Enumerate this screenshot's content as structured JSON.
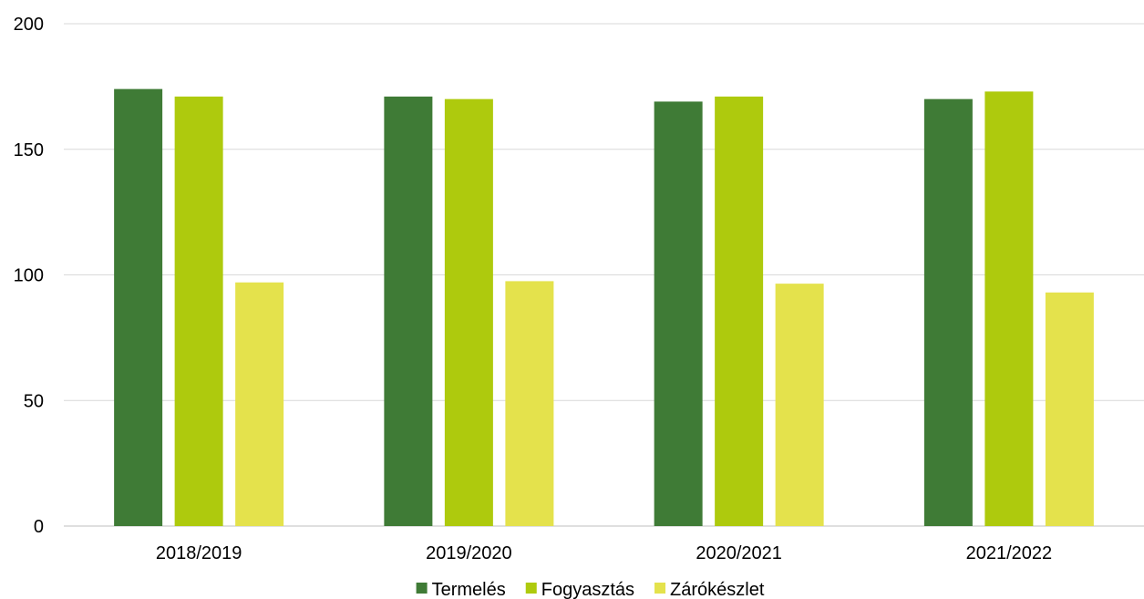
{
  "chart_data": {
    "type": "bar",
    "title": "",
    "xlabel": "",
    "ylabel": "",
    "ylim": [
      0,
      200
    ],
    "yticks": [
      0,
      50,
      100,
      150,
      200
    ],
    "grid": true,
    "legend_position": "bottom",
    "categories": [
      "2018/2019",
      "2019/2020",
      "2020/2021",
      "2021/2022"
    ],
    "series": [
      {
        "name": "Termelés",
        "color": "#3f7b36",
        "values": [
          174,
          171,
          169,
          170
        ]
      },
      {
        "name": "Fogyasztás",
        "color": "#aeca0d",
        "values": [
          171,
          170,
          171,
          173
        ]
      },
      {
        "name": "Zárókészlet",
        "color": "#e4e24c",
        "values": [
          97,
          97.5,
          96.5,
          93
        ]
      }
    ]
  }
}
